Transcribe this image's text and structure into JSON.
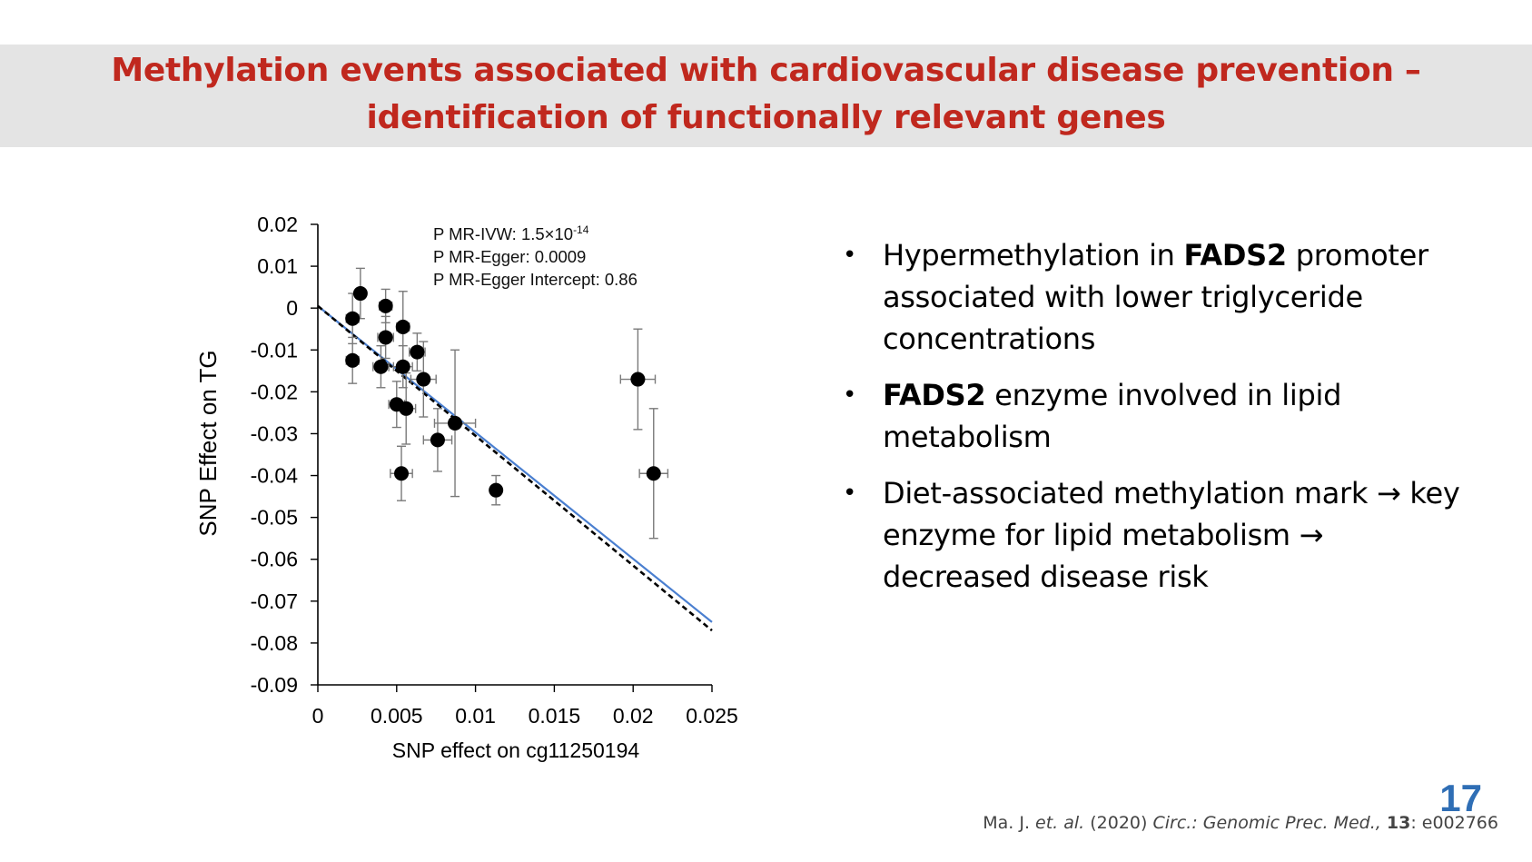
{
  "slide": {
    "title_line1": "Methylation events associated with cardiovascular disease prevention –",
    "title_line2": "identification of functionally relevant genes",
    "page_number": "17",
    "colors": {
      "title": "#c0281e",
      "title_band": "#e4e4e4",
      "page_number": "#2f6eb5",
      "ivw_line": "#4a7fd0",
      "egger_line": "#000000"
    }
  },
  "bullets": [
    {
      "pre": "Hypermethylation in ",
      "bold": "FADS2",
      "post": " promoter associated with lower triglyceride concentrations"
    },
    {
      "pre": "",
      "bold": "FADS2",
      "post": " enzyme involved in lipid metabolism"
    },
    {
      "pre": "Diet-associated methylation mark → key enzyme for lipid metabolism → decreased disease risk",
      "bold": "",
      "post": ""
    }
  ],
  "citation": {
    "authors": "Ma. J. ",
    "etal": "et. al.",
    "year": " (2020) ",
    "journal": "Circ.: Genomic Prec. Med.,",
    "volume": "13",
    "article": ": e002766"
  },
  "chart_data": {
    "type": "scatter",
    "xlabel": "SNP effect on cg11250194",
    "ylabel": "SNP Effect on TG",
    "xlim": [
      0,
      0.025
    ],
    "ylim": [
      -0.09,
      0.02
    ],
    "xticks": [
      0,
      0.005,
      0.01,
      0.015,
      0.02,
      0.025
    ],
    "xtick_labels": [
      "0",
      "0.005",
      "0.01",
      "0.015",
      "0.02",
      "0.025"
    ],
    "yticks": [
      0.02,
      0.01,
      0,
      -0.01,
      -0.02,
      -0.03,
      -0.04,
      -0.05,
      -0.06,
      -0.07,
      -0.08,
      -0.09
    ],
    "ytick_labels": [
      "0.02",
      "0.01",
      "0",
      "-0.01",
      "-0.02",
      "-0.03",
      "-0.04",
      "-0.05",
      "-0.06",
      "-0.07",
      "-0.08",
      "-0.09"
    ],
    "annotations": {
      "ivw_prefix": "P MR-IVW: 1.5×10",
      "ivw_exponent": "-14",
      "egger": "P MR-Egger: 0.0009",
      "egger_intercept": "P MR-Egger Intercept: 0.86"
    },
    "points": [
      {
        "x": 0.0027,
        "y": 0.0035,
        "xerr": 0.0003,
        "yerr": 0.006
      },
      {
        "x": 0.0022,
        "y": -0.0025,
        "xerr": 0.0004,
        "yerr": 0.006
      },
      {
        "x": 0.0022,
        "y": -0.0125,
        "xerr": 0.0004,
        "yerr": 0.0055
      },
      {
        "x": 0.0043,
        "y": 0.0005,
        "xerr": 0.0004,
        "yerr": 0.004
      },
      {
        "x": 0.0043,
        "y": -0.007,
        "xerr": 0.0005,
        "yerr": 0.005
      },
      {
        "x": 0.004,
        "y": -0.014,
        "xerr": 0.0005,
        "yerr": 0.005
      },
      {
        "x": 0.0054,
        "y": -0.0045,
        "xerr": 0.0004,
        "yerr": 0.0085
      },
      {
        "x": 0.0063,
        "y": -0.0105,
        "xerr": 0.0005,
        "yerr": 0.0045
      },
      {
        "x": 0.0054,
        "y": -0.014,
        "xerr": 0.0006,
        "yerr": 0.005
      },
      {
        "x": 0.0067,
        "y": -0.017,
        "xerr": 0.0008,
        "yerr": 0.009
      },
      {
        "x": 0.005,
        "y": -0.023,
        "xerr": 0.0005,
        "yerr": 0.0055
      },
      {
        "x": 0.0056,
        "y": -0.024,
        "xerr": 0.0006,
        "yerr": 0.0085
      },
      {
        "x": 0.0087,
        "y": -0.0275,
        "xerr": 0.0013,
        "yerr": 0.0175
      },
      {
        "x": 0.0076,
        "y": -0.0315,
        "xerr": 0.0009,
        "yerr": 0.0075
      },
      {
        "x": 0.0053,
        "y": -0.0395,
        "xerr": 0.0007,
        "yerr": 0.0065
      },
      {
        "x": 0.0113,
        "y": -0.0435,
        "xerr": 0.0002,
        "yerr": 0.0035
      },
      {
        "x": 0.0203,
        "y": -0.017,
        "xerr": 0.0011,
        "yerr": 0.012
      },
      {
        "x": 0.0213,
        "y": -0.0395,
        "xerr": 0.0009,
        "yerr": 0.0155
      }
    ],
    "lines": [
      {
        "name": "MR-IVW",
        "style": "solid",
        "x": [
          0,
          0.025
        ],
        "y": [
          0.0005,
          -0.075
        ]
      },
      {
        "name": "MR-Egger",
        "style": "dashed",
        "x": [
          0,
          0.025
        ],
        "y": [
          0.0005,
          -0.077
        ]
      }
    ]
  }
}
